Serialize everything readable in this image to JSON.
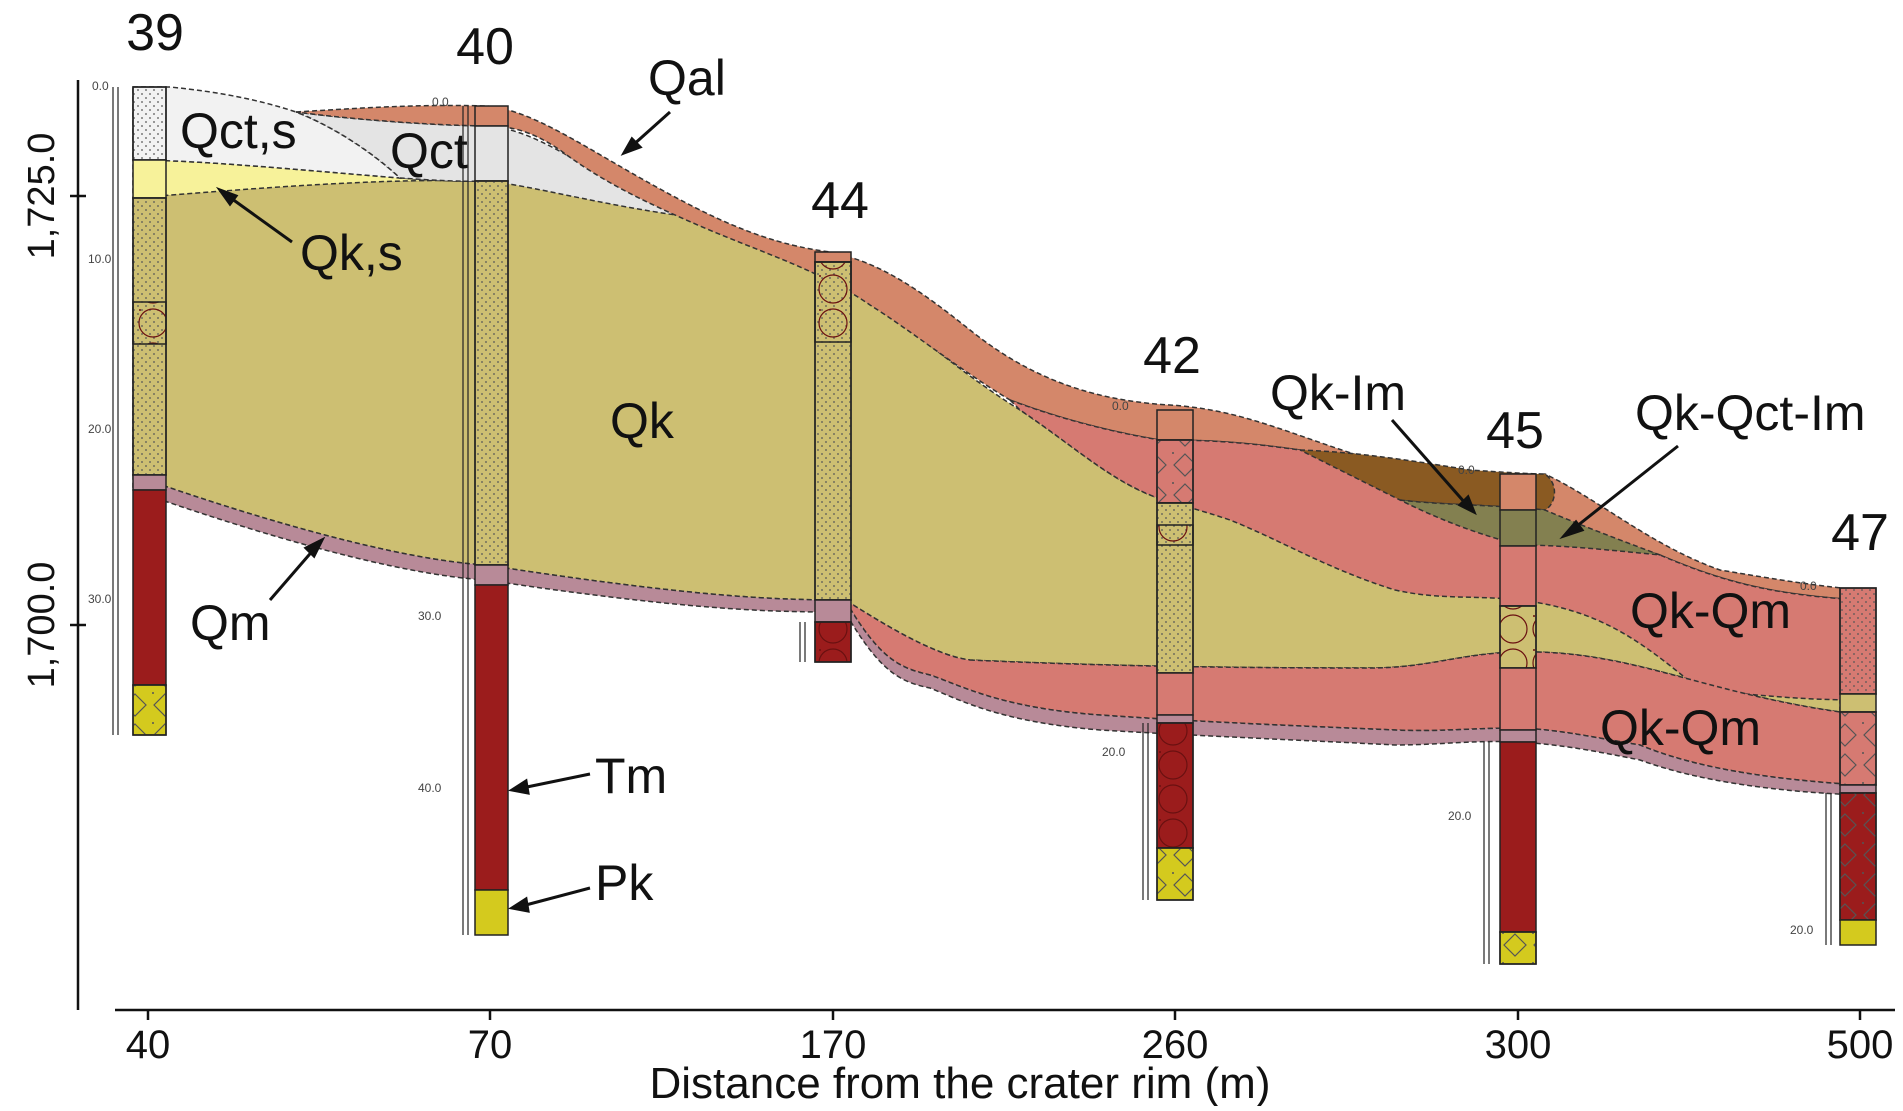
{
  "boreholes": [
    {
      "id": "39",
      "depth_ticks": [
        "0.0",
        "10.0",
        "20.0",
        "30.0"
      ]
    },
    {
      "id": "40",
      "depth_ticks": [
        "0.0",
        "30.0",
        "40.0"
      ]
    },
    {
      "id": "44",
      "depth_ticks": []
    },
    {
      "id": "42",
      "depth_ticks": [
        "0.0",
        "20.0"
      ]
    },
    {
      "id": "45",
      "depth_ticks": [
        "0.0",
        "20.0"
      ]
    },
    {
      "id": "47",
      "depth_ticks": [
        "0.0",
        "20.0"
      ]
    }
  ],
  "units": {
    "Qal": "Qal",
    "Qct_s": "Qct,s",
    "Qct": "Qct",
    "Qk_s": "Qk,s",
    "Qk": "Qk",
    "Qm": "Qm",
    "Tm": "Tm",
    "Pk": "Pk",
    "Qk_Im": "Qk-Im",
    "Qk_Qct_Im": "Qk-Qct-Im",
    "Qk_Qm_upper": "Qk-Qm",
    "Qk_Qm_lower": "Qk-Qm"
  },
  "axes": {
    "x_label": "Distance from the crater rim (m)",
    "x_ticks": [
      "40",
      "70",
      "170",
      "260",
      "300",
      "500"
    ],
    "y_ticks": [
      "1,725.0",
      "1,700.0"
    ]
  },
  "colors": {
    "Qal": "#D4876A",
    "Qct": "#E4E4E4",
    "Qct_s": "#F2F2F2",
    "Qk_s": "#F7F29A",
    "Qk": "#CDBF72",
    "Qm": "#B88A98",
    "Tm": "#9B1C1C",
    "Pk": "#D4CA1E",
    "Qk_Qm": "#D67A72",
    "Qk_Im": "#8A5A22",
    "Qk_Qct_Im": "#838050"
  }
}
